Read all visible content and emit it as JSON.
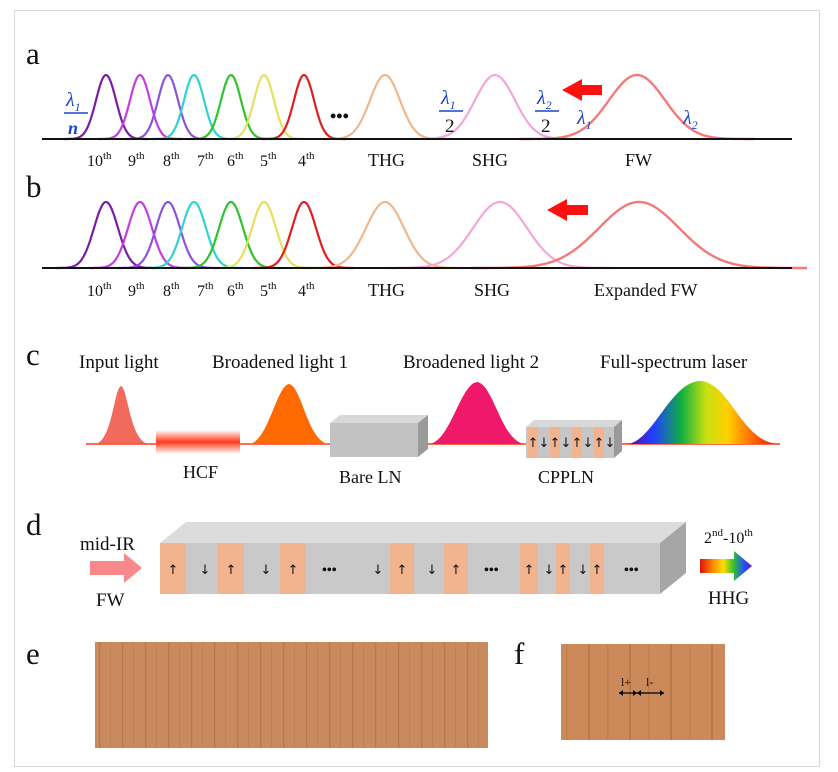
{
  "colors": {
    "h10": "#7a1ea3",
    "h9": "#c23ee0",
    "h8": "#8a55d8",
    "h7": "#2ed4d4",
    "h6": "#2ec42e",
    "h5": "#e6e060",
    "h4": "#e01e1e",
    "thg": "#f0b88a",
    "shg": "#f4a6d8",
    "fw": "#f27a7a",
    "arrow": "#ff1010",
    "math": "#1d43c9",
    "crystal_orange": "#f2b48f",
    "crystal_gray": "#c6c6c6"
  },
  "panel_a": {
    "letter": "a",
    "orders": [
      {
        "base": "10",
        "sup": "th"
      },
      {
        "base": "9",
        "sup": "th"
      },
      {
        "base": "8",
        "sup": "th"
      },
      {
        "base": "7",
        "sup": "th"
      },
      {
        "base": "6",
        "sup": "th"
      },
      {
        "base": "5",
        "sup": "th"
      },
      {
        "base": "4",
        "sup": "th"
      }
    ],
    "ellipsis": "•••",
    "thg": "THG",
    "shg": "SHG",
    "fw": "FW",
    "lambda_sym": "λ",
    "sub1": "1",
    "sub2": "2",
    "n": "n",
    "two": "2"
  },
  "panel_b": {
    "letter": "b",
    "orders": [
      {
        "base": "10",
        "sup": "th"
      },
      {
        "base": "9",
        "sup": "th"
      },
      {
        "base": "8",
        "sup": "th"
      },
      {
        "base": "7",
        "sup": "th"
      },
      {
        "base": "6",
        "sup": "th"
      },
      {
        "base": "5",
        "sup": "th"
      },
      {
        "base": "4",
        "sup": "th"
      }
    ],
    "thg": "THG",
    "shg": "SHG",
    "fw": "Expanded FW"
  },
  "panel_c": {
    "letter": "c",
    "input": "Input light",
    "broad1": "Broadened light 1",
    "broad2": "Broadened light 2",
    "full": "Full-spectrum laser",
    "hcf": "HCF",
    "bare": "Bare LN",
    "cppln": "CPPLN"
  },
  "panel_d": {
    "letter": "d",
    "midir": "mid-IR",
    "fw": "FW",
    "hhg_range_a": "2",
    "hhg_sup_a": "nd",
    "hhg_dash": "-10",
    "hhg_sup_b": "th",
    "hhg": "HHG",
    "dots": "•••"
  },
  "panel_e": {
    "letter": "e"
  },
  "panel_f": {
    "letter": "f",
    "lplus": "l+",
    "lminus": "l-"
  }
}
